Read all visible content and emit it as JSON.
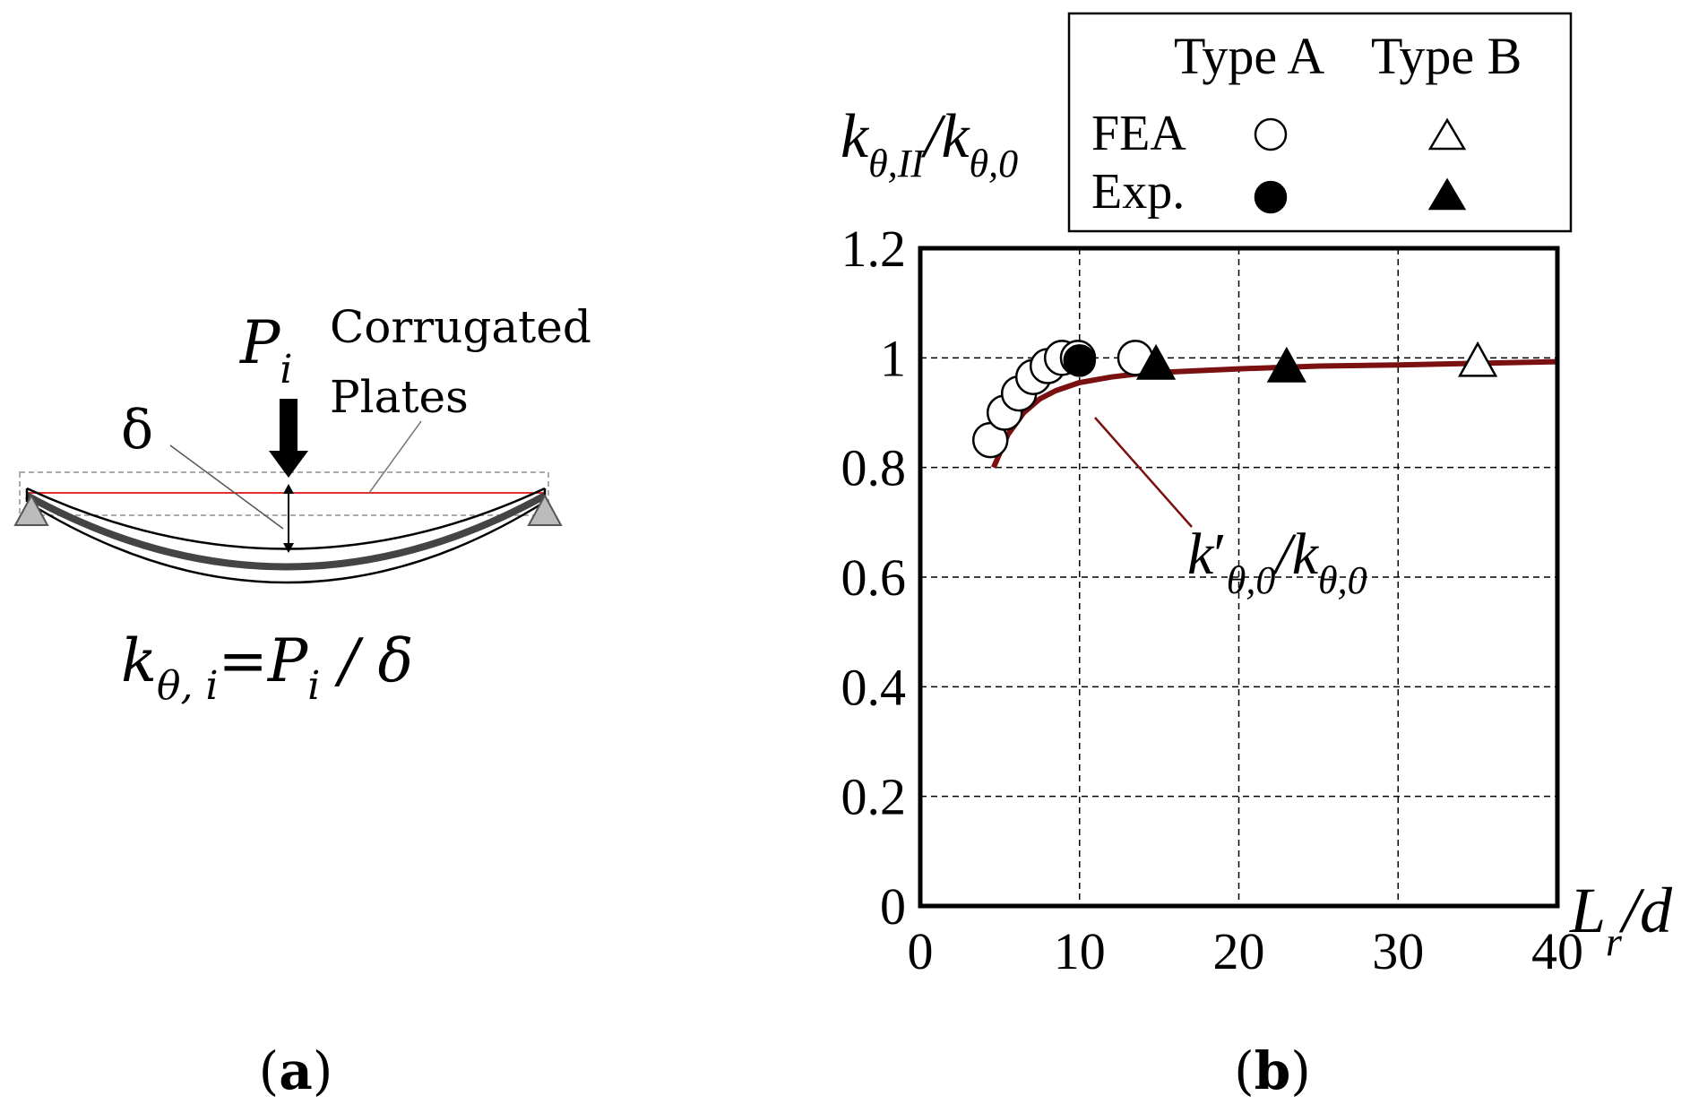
{
  "panel_a": {
    "caption_open": "(",
    "caption_letter": "a",
    "caption_close": ")",
    "load_symbol": "P",
    "load_sub": "i",
    "plate_label_line1": "Corrugated",
    "plate_label_line2": "Plates",
    "deflection_symbol": "δ",
    "formula_k": "k",
    "formula_sub": "θ, i",
    "formula_eq": "=",
    "formula_P": "P",
    "formula_P_sub": "i",
    "formula_rest": " / δ"
  },
  "panel_b": {
    "caption_open": "(",
    "caption_letter": "b",
    "caption_close": ")"
  },
  "chart_data": {
    "type": "scatter",
    "ylabel": {
      "k": "k",
      "sub1": "θ,II",
      "slash": "/",
      "k2": "k",
      "sub2": "θ,0"
    },
    "xlabel": {
      "L": "L",
      "sub": "r",
      "rest": "/d"
    },
    "annotation": {
      "k": "k",
      "prime": "′",
      "sub1": "θ,0",
      "slash": "/",
      "k2": "k",
      "sub2": "θ,0"
    },
    "xlim": [
      0,
      40
    ],
    "ylim": [
      0,
      1.2
    ],
    "x_ticks": [
      "0",
      "10",
      "20",
      "30",
      "40"
    ],
    "y_ticks": [
      "0",
      "0.2",
      "0.4",
      "0.6",
      "0.8",
      "1",
      "1.2"
    ],
    "grid": true,
    "legend": {
      "position": "top-right",
      "col_headers": [
        "Type A",
        "Type B"
      ],
      "row_labels": [
        "FEA",
        "Exp."
      ]
    },
    "series": [
      {
        "name": "FEA Type A",
        "marker": "circle-open",
        "points": [
          [
            4.4,
            0.85
          ],
          [
            5.3,
            0.9
          ],
          [
            6.2,
            0.935
          ],
          [
            7.1,
            0.965
          ],
          [
            8.0,
            0.985
          ],
          [
            8.9,
            1.0
          ],
          [
            9.9,
            1.0
          ],
          [
            13.5,
            1.0
          ]
        ]
      },
      {
        "name": "Exp. Type A",
        "marker": "circle-filled",
        "points": [
          [
            10.0,
            0.995
          ]
        ]
      },
      {
        "name": "FEA Type B",
        "marker": "triangle-open",
        "points": [
          [
            35.0,
            0.995
          ]
        ]
      },
      {
        "name": "Exp. Type B",
        "marker": "triangle-filled",
        "points": [
          [
            14.8,
            0.99
          ],
          [
            23.0,
            0.985
          ]
        ]
      },
      {
        "name": "k'θ,0/kθ,0",
        "type": "line",
        "color": "#7a1010",
        "points": [
          [
            4.6,
            0.8
          ],
          [
            5.5,
            0.86
          ],
          [
            6.5,
            0.9
          ],
          [
            7.5,
            0.925
          ],
          [
            8.5,
            0.94
          ],
          [
            10,
            0.955
          ],
          [
            12,
            0.965
          ],
          [
            14,
            0.972
          ],
          [
            17,
            0.976
          ],
          [
            20,
            0.98
          ],
          [
            25,
            0.985
          ],
          [
            30,
            0.987
          ],
          [
            35,
            0.99
          ],
          [
            40,
            0.993
          ]
        ]
      }
    ]
  }
}
